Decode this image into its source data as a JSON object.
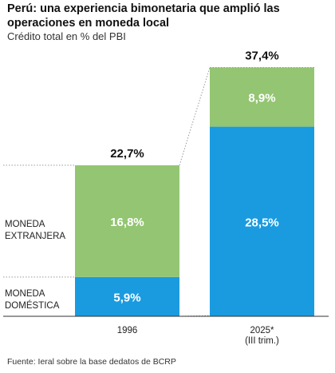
{
  "header": {
    "title": "Perú: una experiencia bimonetaria que amplió las operaciones en moneda local",
    "subtitle": "Crédito total en % del PBI"
  },
  "source": "Fuente: Ieral sobre la base dedatos de BCRP",
  "colors": {
    "extranjera": "#93c572",
    "domestica": "#1a9be0"
  },
  "chart_data": {
    "type": "bar",
    "stacked": true,
    "categories": [
      "1996",
      "2025* (III trim.)"
    ],
    "category_labels": [
      [
        "1996"
      ],
      [
        "2025*",
        "(III trim.)"
      ]
    ],
    "series": [
      {
        "name": "MONEDA DOMÉSTICA",
        "label_lines": [
          "MONEDA",
          "DOMÉSTICA"
        ],
        "values": [
          5.9,
          28.5
        ],
        "labels": [
          "5,9%",
          "28,5%"
        ]
      },
      {
        "name": "MONEDA EXTRANJERA",
        "label_lines": [
          "MONEDA",
          "EXTRANJERA"
        ],
        "values": [
          16.8,
          8.9
        ],
        "labels": [
          "16,8%",
          "8,9%"
        ]
      }
    ],
    "totals": [
      22.7,
      37.4
    ],
    "total_labels": [
      "22,7%",
      "37,4%"
    ]
  }
}
